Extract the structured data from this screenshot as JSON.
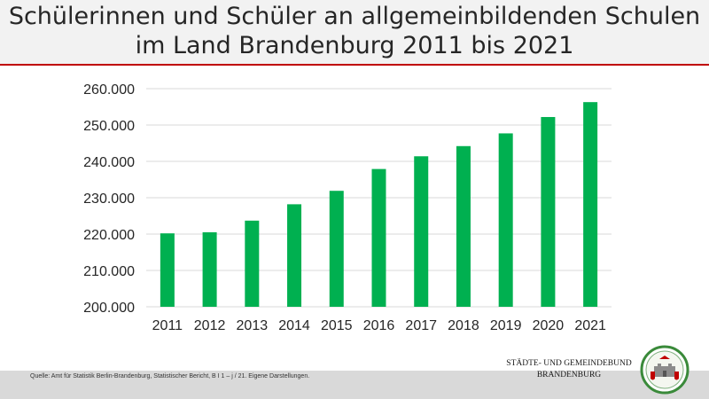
{
  "header": {
    "title_line1": "Schülerinnen und Schüler an allgemeinbildenden Schulen",
    "title_line2": "im Land Brandenburg 2011 bis 2021"
  },
  "footer": {
    "source": "Quelle: Amt für Statistik Berlin-Brandenburg, Statistischer Bericht, B I 1 – j / 21. Eigene Darstellungen.",
    "org_line1": "STÄDTE- UND GEMEINDEBUND",
    "org_line2": "BRANDENBURG"
  },
  "colors": {
    "bar": "#00b050",
    "title_rule": "#c00000",
    "grid": "#d9d9d9"
  },
  "chart_data": {
    "type": "bar",
    "title": "Schülerinnen und Schüler an allgemeinbildenden Schulen im Land Brandenburg 2011 bis 2021",
    "categories": [
      "2011",
      "2012",
      "2013",
      "2014",
      "2015",
      "2016",
      "2017",
      "2018",
      "2019",
      "2020",
      "2021"
    ],
    "values": [
      220200,
      220500,
      223700,
      228200,
      231900,
      237900,
      241400,
      244200,
      247700,
      252200,
      256300
    ],
    "ylim": [
      200000,
      260000
    ],
    "yticks": [
      200000,
      210000,
      220000,
      230000,
      240000,
      250000,
      260000
    ],
    "ytick_labels": [
      "200.000",
      "210.000",
      "220.000",
      "230.000",
      "240.000",
      "250.000",
      "260.000"
    ],
    "grid": true,
    "legend": "none"
  }
}
